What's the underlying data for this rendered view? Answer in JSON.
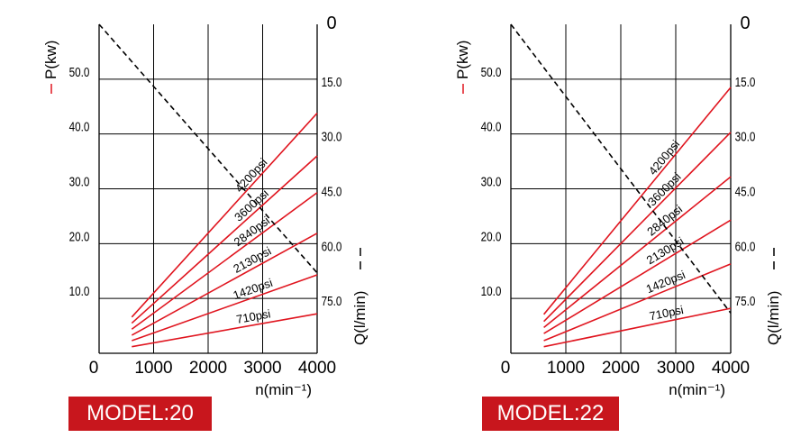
{
  "colors": {
    "pressure_line": "#e0151f",
    "model_badge": "#c8161d",
    "grid": "#000000",
    "flow_line": "#000000"
  },
  "chart_data": [
    {
      "type": "line",
      "model_label": "MODEL:20",
      "xlabel": "n(min⁻¹)",
      "ylabel_left": "P(kw)",
      "ylabel_right": "Q(l/min)",
      "xlim": [
        0,
        4000
      ],
      "x_ticks": [
        "0",
        "1000",
        "2000",
        "3000",
        "4000"
      ],
      "ylim_left": [
        0,
        60
      ],
      "y_ticks_left": [
        "10.0",
        "20.0",
        "30.0",
        "40.0",
        "50.0"
      ],
      "ylim_right": [
        90,
        0
      ],
      "y_ticks_right": [
        "0",
        "15.0",
        "30.0",
        "45.0",
        "60.0",
        "75.0"
      ],
      "grid": true,
      "series": [
        {
          "name": "710psi",
          "x": [
            600,
            4000
          ],
          "y": [
            1.2,
            7.2
          ]
        },
        {
          "name": "1420psi",
          "x": [
            600,
            4000
          ],
          "y": [
            2.3,
            14.3
          ]
        },
        {
          "name": "2130psi",
          "x": [
            600,
            4000
          ],
          "y": [
            3.3,
            21.9
          ]
        },
        {
          "name": "2840psi",
          "x": [
            600,
            4000
          ],
          "y": [
            4.4,
            29.3
          ]
        },
        {
          "name": "3600psi",
          "x": [
            600,
            4000
          ],
          "y": [
            5.5,
            36.0
          ]
        },
        {
          "name": "4200psi",
          "x": [
            600,
            4000
          ],
          "y": [
            6.6,
            43.8
          ]
        }
      ],
      "flow_line": {
        "x": [
          0,
          4000
        ],
        "q": [
          0,
          68
        ]
      }
    },
    {
      "type": "line",
      "model_label": "MODEL:22",
      "xlabel": "n(min⁻¹)",
      "ylabel_left": "P(kw)",
      "ylabel_right": "Q(l/min)",
      "xlim": [
        0,
        4000
      ],
      "x_ticks": [
        "0",
        "1000",
        "2000",
        "3000",
        "4000"
      ],
      "ylim_left": [
        0,
        60
      ],
      "y_ticks_left": [
        "10.0",
        "20.0",
        "30.0",
        "40.0",
        "50.0"
      ],
      "ylim_right": [
        90,
        0
      ],
      "y_ticks_right": [
        "0",
        "15.0",
        "30.0",
        "45.0",
        "60.0",
        "75.0"
      ],
      "grid": true,
      "series": [
        {
          "name": "710psi",
          "x": [
            600,
            4000
          ],
          "y": [
            1.2,
            8.2
          ]
        },
        {
          "name": "1420psi",
          "x": [
            600,
            4000
          ],
          "y": [
            2.3,
            16.3
          ]
        },
        {
          "name": "2130psi",
          "x": [
            600,
            4000
          ],
          "y": [
            3.6,
            24.3
          ]
        },
        {
          "name": "2840psi",
          "x": [
            600,
            4000
          ],
          "y": [
            4.7,
            32.2
          ]
        },
        {
          "name": "3600psi",
          "x": [
            600,
            4000
          ],
          "y": [
            5.8,
            40.3
          ]
        },
        {
          "name": "4200psi",
          "x": [
            600,
            4000
          ],
          "y": [
            7.1,
            48.5
          ]
        }
      ],
      "flow_line": {
        "x": [
          0,
          4000
        ],
        "q": [
          0,
          79
        ]
      }
    }
  ]
}
